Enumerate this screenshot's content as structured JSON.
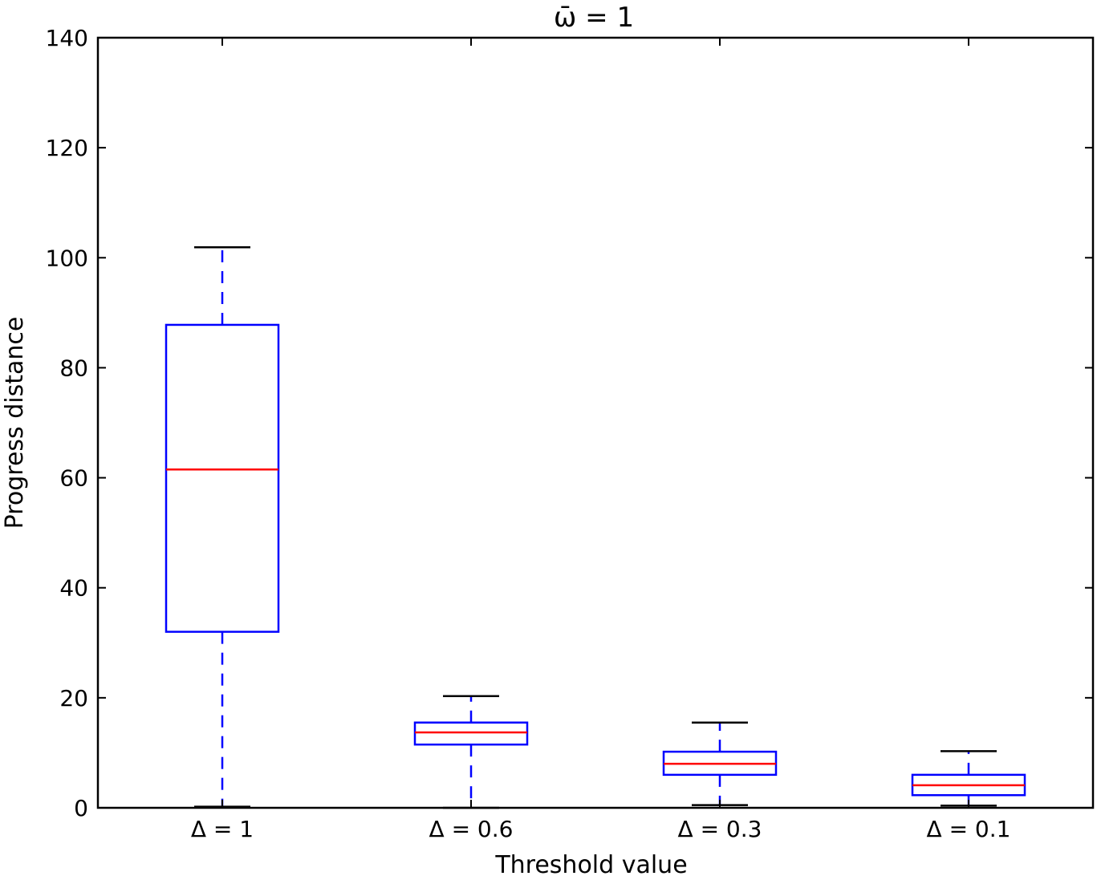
{
  "chart_data": {
    "type": "boxplot",
    "title": "ω̄ = 1",
    "xlabel": "Threshold value",
    "ylabel": "Progress distance",
    "ylim": [
      0,
      140
    ],
    "yticks": [
      0,
      20,
      40,
      60,
      80,
      100,
      120,
      140
    ],
    "grid": false,
    "categories": [
      "Δ = 1",
      "Δ = 0.6",
      "Δ = 0.3",
      "Δ = 0.1"
    ],
    "boxes": [
      {
        "whislo": 0.2,
        "q1": 32.0,
        "median": 61.5,
        "q3": 87.8,
        "whishi": 101.9
      },
      {
        "whislo": 0.0,
        "q1": 11.5,
        "median": 13.7,
        "q3": 15.5,
        "whishi": 20.3
      },
      {
        "whislo": 0.5,
        "q1": 6.0,
        "median": 8.0,
        "q3": 10.2,
        "whishi": 15.5
      },
      {
        "whislo": 0.4,
        "q1": 2.3,
        "median": 4.1,
        "q3": 6.0,
        "whishi": 10.3
      }
    ],
    "colors": {
      "box": "#0000ff",
      "median": "#ff0000",
      "cap": "#000000",
      "axes": "#000000"
    }
  }
}
